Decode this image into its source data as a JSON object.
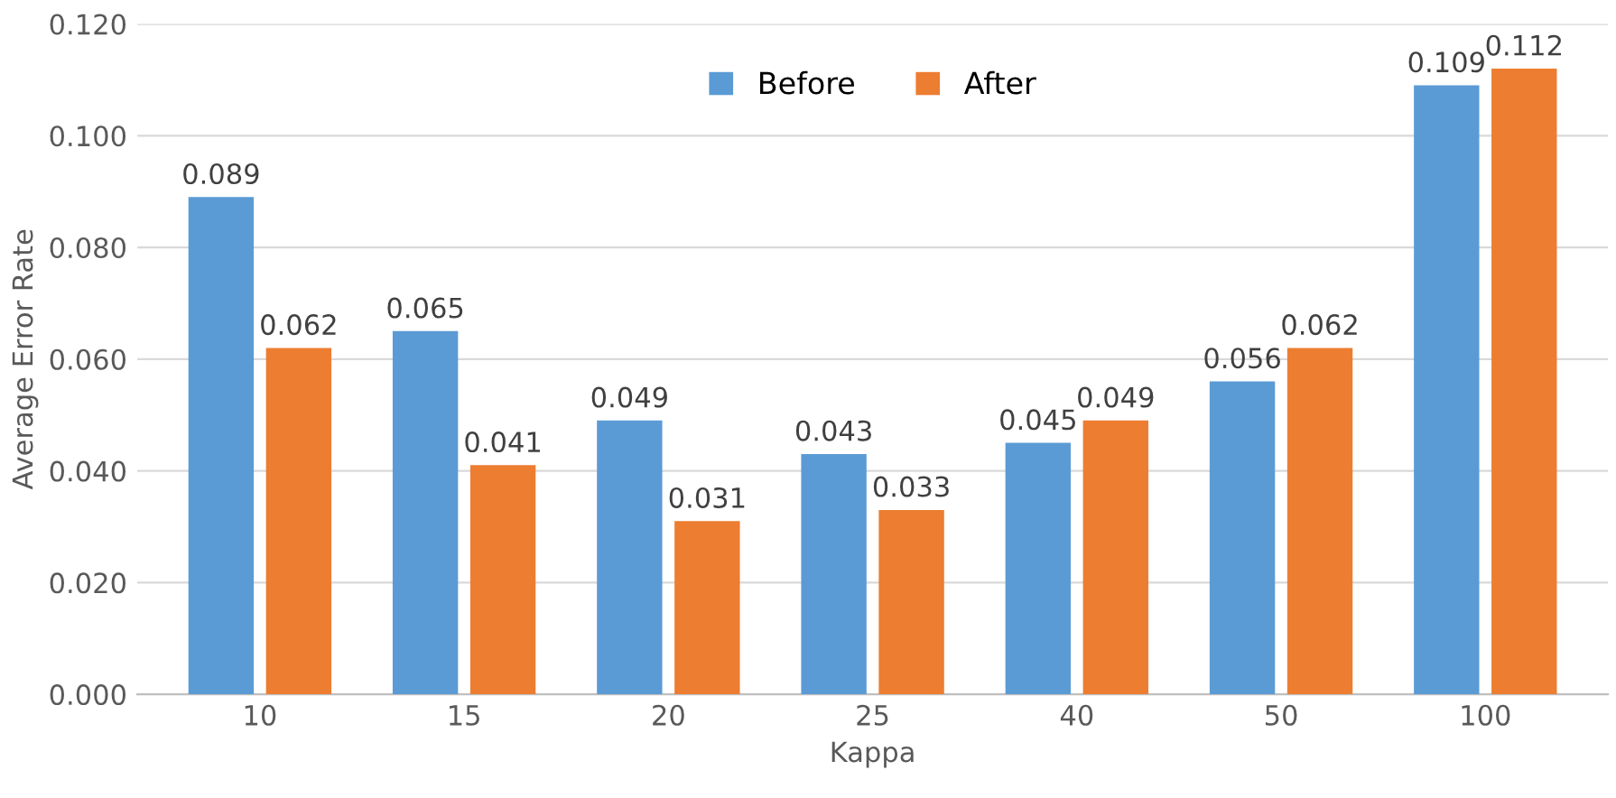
{
  "chart_data": {
    "type": "bar",
    "xlabel": "Kappa",
    "ylabel": "Average Error Rate",
    "categories": [
      "10",
      "15",
      "20",
      "25",
      "40",
      "50",
      "100"
    ],
    "series": [
      {
        "name": "Before",
        "color": "#5b9bd5",
        "values": [
          0.089,
          0.065,
          0.049,
          0.043,
          0.045,
          0.056,
          0.109
        ]
      },
      {
        "name": "After",
        "color": "#ed7d31",
        "values": [
          0.062,
          0.041,
          0.031,
          0.033,
          0.049,
          0.062,
          0.112
        ]
      }
    ],
    "ylim": [
      0,
      0.12
    ],
    "yticks": [
      {
        "value": 0,
        "label": "0.000"
      },
      {
        "value": 0.02,
        "label": "0.020"
      },
      {
        "value": 0.04,
        "label": "0.040"
      },
      {
        "value": 0.06,
        "label": "0.060"
      },
      {
        "value": 0.08,
        "label": "0.080"
      },
      {
        "value": 0.1,
        "label": "0.100"
      },
      {
        "value": 0.12,
        "label": "0.120"
      }
    ],
    "grid": "y",
    "legend": "top",
    "data_labels": true
  }
}
